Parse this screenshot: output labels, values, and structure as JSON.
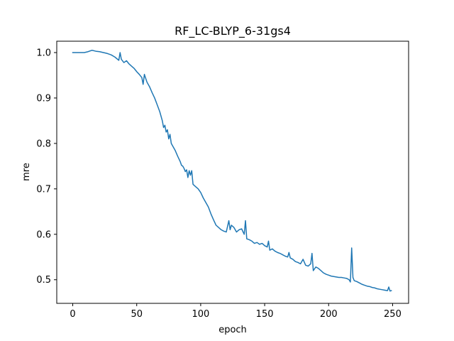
{
  "chart_data": {
    "type": "line",
    "title": "RF_LC-BLYP_6-31gs4",
    "xlabel": "epoch",
    "ylabel": "mre",
    "xlim": [
      -12.5,
      262.5
    ],
    "ylim": [
      0.448,
      1.025
    ],
    "xticks": [
      0,
      50,
      100,
      150,
      200,
      250
    ],
    "yticks": [
      0.5,
      0.6,
      0.7,
      0.8,
      0.9,
      1.0
    ],
    "ytick_labels": [
      "0.5",
      "0.6",
      "0.7",
      "0.8",
      "0.9",
      "1.0"
    ],
    "grid": false,
    "series": [
      {
        "color": "#1f77b4",
        "x": [
          0,
          3,
          6,
          9,
          12,
          15,
          18,
          21,
          24,
          27,
          30,
          33,
          36,
          37,
          38,
          40,
          42,
          44,
          46,
          48,
          50,
          52,
          54,
          55,
          56,
          58,
          60,
          62,
          64,
          66,
          68,
          70,
          71,
          72,
          73,
          74,
          75,
          76,
          77,
          78,
          80,
          82,
          84,
          85,
          86,
          87,
          88,
          89,
          90,
          91,
          92,
          93,
          94,
          96,
          98,
          100,
          102,
          104,
          106,
          108,
          110,
          112,
          114,
          116,
          118,
          120,
          122,
          123,
          124,
          126,
          128,
          130,
          132,
          134,
          135,
          136,
          138,
          140,
          142,
          144,
          146,
          148,
          150,
          152,
          153,
          154,
          156,
          158,
          160,
          162,
          164,
          166,
          168,
          169,
          170,
          172,
          174,
          176,
          178,
          180,
          182,
          184,
          186,
          187,
          188,
          190,
          192,
          194,
          196,
          198,
          200,
          202,
          204,
          206,
          208,
          210,
          212,
          214,
          216,
          217,
          218,
          219,
          220,
          222,
          224,
          226,
          228,
          230,
          232,
          234,
          236,
          238,
          240,
          242,
          244,
          246,
          247,
          248,
          249
        ],
        "y": [
          1.0,
          1.0,
          1.0,
          1.0,
          1.002,
          1.005,
          1.003,
          1.002,
          1.0,
          0.998,
          0.995,
          0.99,
          0.983,
          1.0,
          0.985,
          0.978,
          0.982,
          0.975,
          0.97,
          0.965,
          0.958,
          0.952,
          0.945,
          0.93,
          0.952,
          0.935,
          0.925,
          0.912,
          0.9,
          0.885,
          0.87,
          0.85,
          0.835,
          0.84,
          0.825,
          0.83,
          0.81,
          0.82,
          0.8,
          0.795,
          0.785,
          0.772,
          0.76,
          0.752,
          0.75,
          0.745,
          0.738,
          0.742,
          0.725,
          0.74,
          0.73,
          0.74,
          0.71,
          0.705,
          0.7,
          0.692,
          0.68,
          0.67,
          0.66,
          0.645,
          0.632,
          0.62,
          0.615,
          0.61,
          0.607,
          0.605,
          0.63,
          0.61,
          0.62,
          0.615,
          0.605,
          0.61,
          0.612,
          0.6,
          0.63,
          0.59,
          0.588,
          0.585,
          0.58,
          0.582,
          0.578,
          0.58,
          0.575,
          0.572,
          0.585,
          0.565,
          0.568,
          0.563,
          0.56,
          0.558,
          0.555,
          0.552,
          0.55,
          0.56,
          0.548,
          0.545,
          0.54,
          0.538,
          0.535,
          0.545,
          0.532,
          0.53,
          0.535,
          0.558,
          0.52,
          0.528,
          0.525,
          0.52,
          0.515,
          0.512,
          0.51,
          0.508,
          0.507,
          0.506,
          0.505,
          0.505,
          0.504,
          0.503,
          0.5,
          0.495,
          0.57,
          0.505,
          0.498,
          0.496,
          0.493,
          0.49,
          0.488,
          0.486,
          0.485,
          0.483,
          0.482,
          0.48,
          0.479,
          0.478,
          0.477,
          0.476,
          0.484,
          0.475,
          0.476
        ]
      }
    ]
  }
}
